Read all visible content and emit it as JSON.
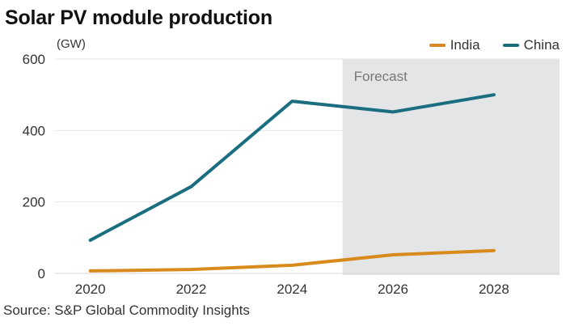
{
  "chart_data": {
    "type": "line",
    "title": "Solar PV module production",
    "ylabel": "(GW)",
    "xlabel": "",
    "x": [
      2020,
      2022,
      2024,
      2026,
      2028
    ],
    "x_tick_labels": [
      "2020",
      "2022",
      "2024",
      "2026",
      "2028"
    ],
    "y_ticks": [
      0,
      200,
      400,
      600
    ],
    "y_tick_labels": [
      "0",
      "200",
      "400",
      "600"
    ],
    "ylim": [
      0,
      600
    ],
    "xlim": [
      2019.3,
      2029.3
    ],
    "grid": "horizontal",
    "legend_position": "top-right",
    "series": [
      {
        "name": "India",
        "color": "#d98a1c",
        "values": [
          7,
          11,
          23,
          52,
          64
        ]
      },
      {
        "name": "China",
        "color": "#1a6e80",
        "values": [
          93,
          243,
          482,
          452,
          500
        ]
      }
    ],
    "annotations": [
      {
        "type": "shaded_region",
        "label": "Forecast",
        "x_start": 2025,
        "x_end": 2029.3,
        "color": "#e4e5e7"
      }
    ],
    "source": "Source: S&P Global Commodity Insights"
  }
}
